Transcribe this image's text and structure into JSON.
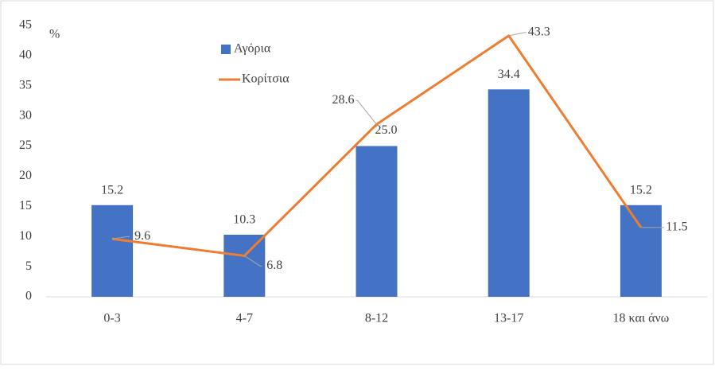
{
  "chart_data": {
    "type": "bar",
    "y_label": "%",
    "categories": [
      "0-3",
      "4-7",
      "8-12",
      "13-17",
      "18 και άνω"
    ],
    "series": [
      {
        "name": "Αγόρια",
        "type": "bar",
        "color": "#4472c4",
        "values": [
          15.2,
          10.3,
          25,
          34.4,
          15.2
        ],
        "value_labels": [
          "15.2",
          "10.3",
          "25.0",
          "34.4",
          "15.2"
        ]
      },
      {
        "name": "Κορίτσια",
        "type": "line",
        "color": "#ed7d31",
        "values": [
          9.6,
          6.8,
          28.6,
          43.3,
          11.5
        ]
      }
    ],
    "ylim": [
      0,
      45
    ],
    "yticks": [
      0,
      5,
      10,
      15,
      20,
      25,
      30,
      35,
      40,
      45
    ],
    "grid": false,
    "legend": "top-left"
  }
}
